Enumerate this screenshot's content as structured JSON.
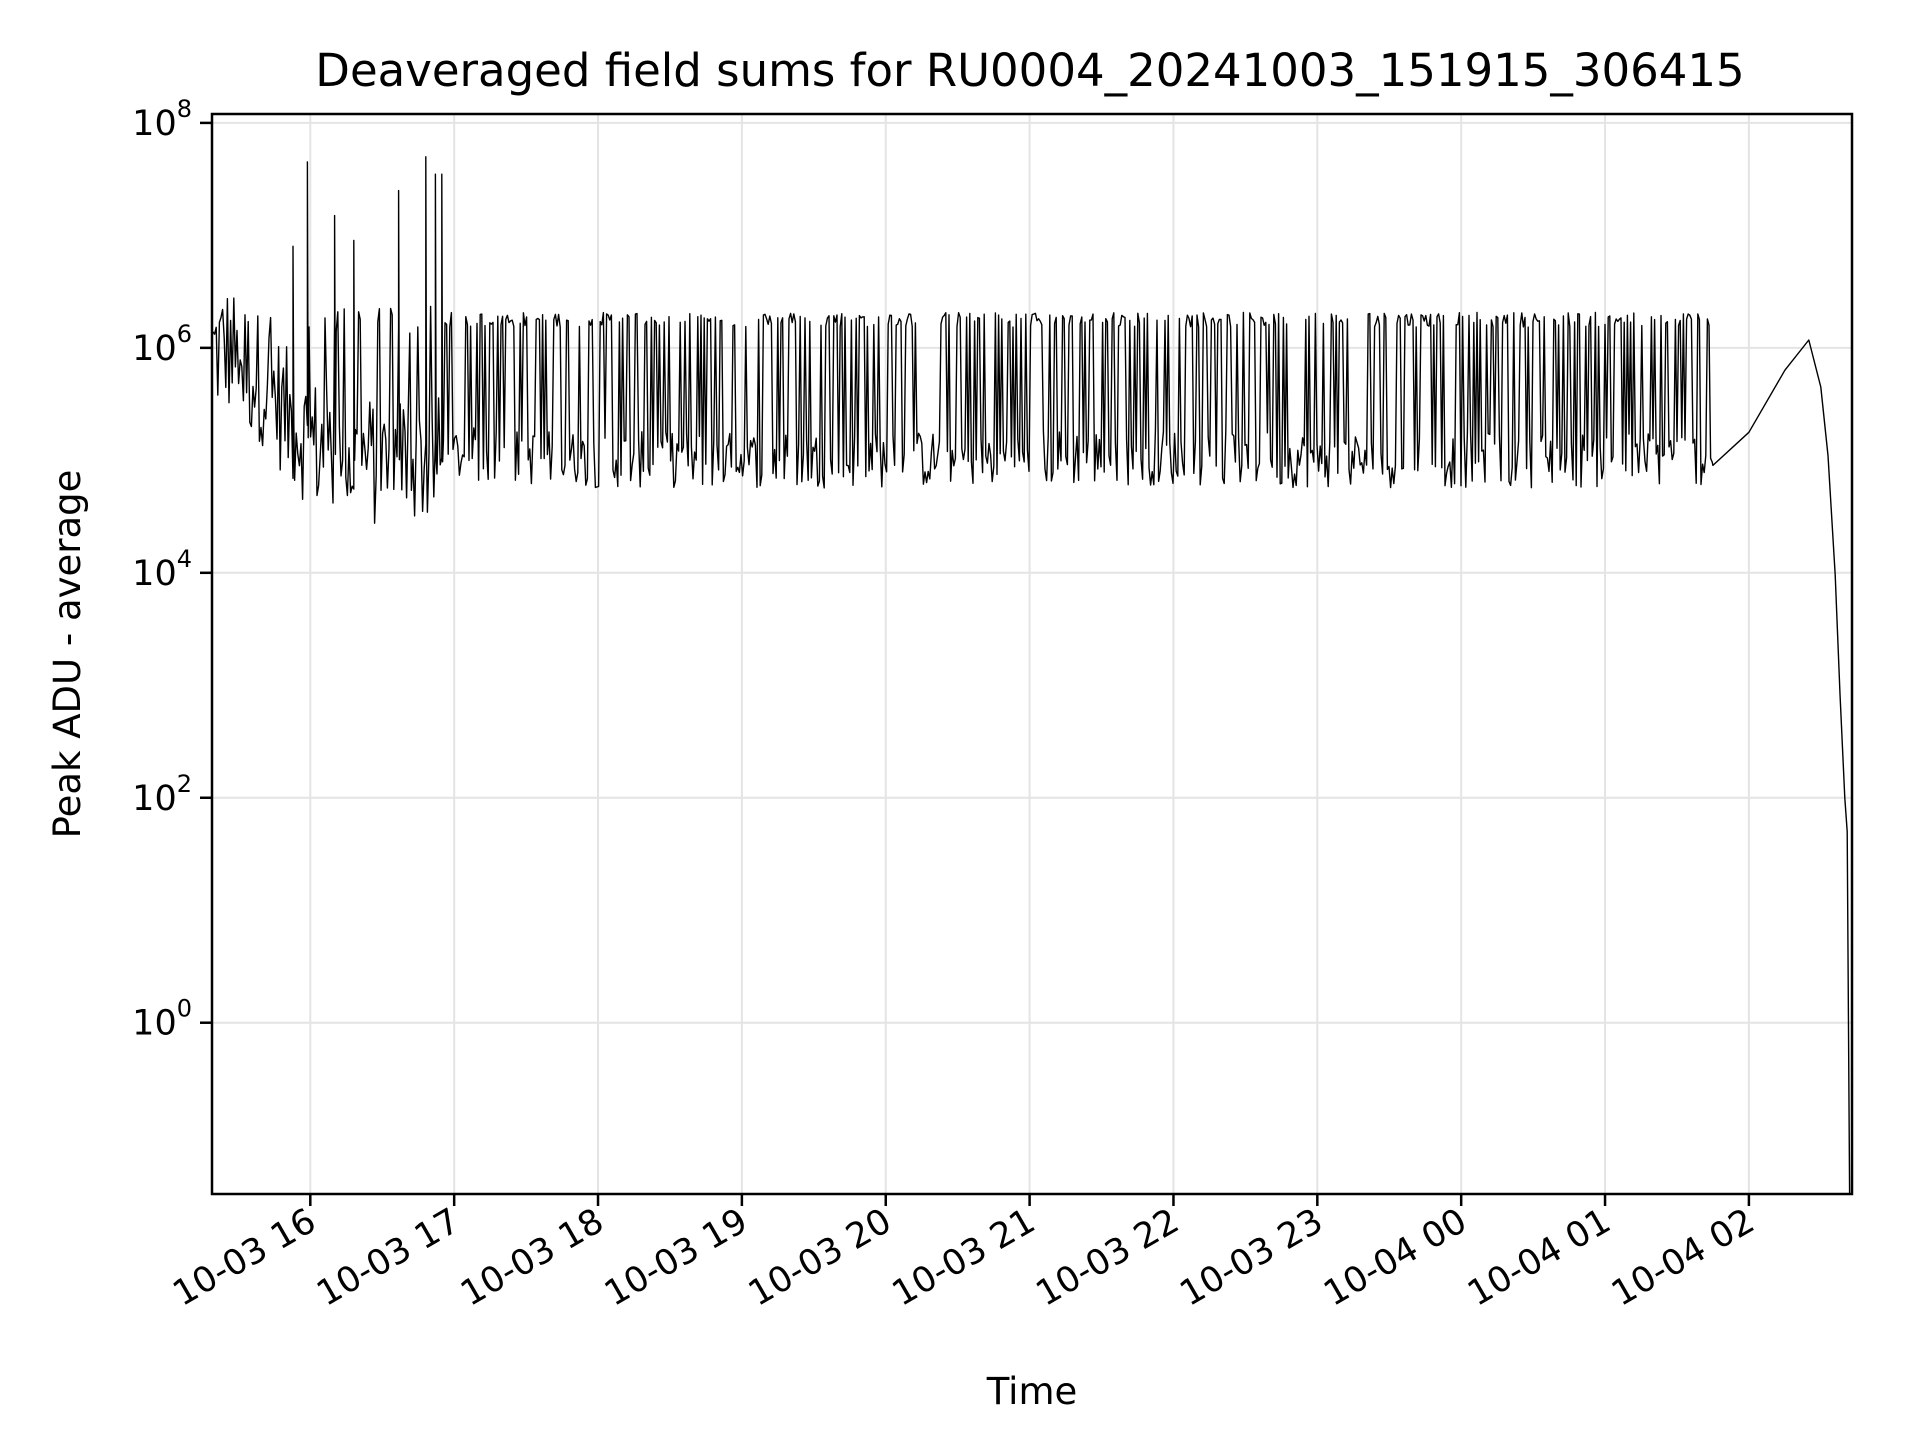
{
  "chart_data": {
    "type": "line",
    "title": "Deaveraged field sums for RU0004_20241003_151915_306415",
    "xlabel": "Time",
    "ylabel": "Peak ADU - average",
    "yscale": "log",
    "ylim": [
      0.03,
      120000000
    ],
    "xlim": [
      "2024-10-03 15:19",
      "2024-10-04 02:43"
    ],
    "grid": true,
    "x_tick_labels": [
      "10-03 16",
      "10-03 17",
      "10-03 18",
      "10-03 19",
      "10-03 20",
      "10-03 21",
      "10-03 22",
      "10-03 23",
      "10-04 00",
      "10-04 01",
      "10-04 02"
    ],
    "x_tick_values": [
      "2024-10-03 16:00",
      "2024-10-03 17:00",
      "2024-10-03 18:00",
      "2024-10-03 19:00",
      "2024-10-03 20:00",
      "2024-10-03 21:00",
      "2024-10-03 22:00",
      "2024-10-03 23:00",
      "2024-10-04 00:00",
      "2024-10-04 01:00",
      "2024-10-04 02:00"
    ],
    "y_ticks": [
      {
        "value": 1,
        "base": "10",
        "exp": "0"
      },
      {
        "value": 100,
        "base": "10",
        "exp": "2"
      },
      {
        "value": 10000,
        "base": "10",
        "exp": "4"
      },
      {
        "value": 1000000,
        "base": "10",
        "exp": "6"
      },
      {
        "value": 100000000,
        "base": "10",
        "exp": "8"
      }
    ],
    "series": [
      {
        "color": "#000000",
        "x": [
          "2024-10-03 15:19",
          "2024-10-03 15:25",
          "2024-10-03 15:30",
          "2024-10-03 15:36",
          "2024-10-03 15:42",
          "2024-10-03 15:48",
          "2024-10-03 15:54",
          "2024-10-03 16:00",
          "2024-10-03 16:06",
          "2024-10-03 16:12",
          "2024-10-03 16:18",
          "2024-10-03 16:24",
          "2024-10-03 16:30",
          "2024-10-03 16:36",
          "2024-10-03 16:42",
          "2024-10-03 16:48",
          "2024-10-03 17:00",
          "2024-10-03 17:30",
          "2024-10-03 18:00",
          "2024-10-03 19:00",
          "2024-10-03 20:00",
          "2024-10-03 21:00",
          "2024-10-03 22:00",
          "2024-10-03 23:00",
          "2024-10-04 00:00",
          "2024-10-04 01:00",
          "2024-10-04 01:45",
          "2024-10-04 02:00",
          "2024-10-04 02:15",
          "2024-10-04 02:25",
          "2024-10-04 02:30",
          "2024-10-04 02:33",
          "2024-10-04 02:36",
          "2024-10-04 02:38",
          "2024-10-04 02:40",
          "2024-10-04 02:41",
          "2024-10-04 02:42"
        ],
        "y": [
          900000,
          1000000,
          800000,
          600000,
          500000,
          300000,
          200000,
          150000,
          120000,
          110000,
          100000,
          100000,
          95000,
          100000,
          110000,
          100000,
          95000,
          90000,
          85000,
          85000,
          85000,
          90000,
          90000,
          85000,
          85000,
          85000,
          90000,
          200000,
          500000,
          1000000,
          600000,
          100000,
          10000,
          1000,
          100,
          50,
          0.03
        ]
      }
    ],
    "spikes": {
      "x": [
        "2024-10-03 15:53",
        "2024-10-03 15:59",
        "2024-10-03 16:10",
        "2024-10-03 16:18",
        "2024-10-03 16:37",
        "2024-10-03 16:48",
        "2024-10-03 16:52",
        "2024-10-03 16:55"
      ],
      "y": [
        8000000,
        45000000,
        15000000,
        9000000,
        25000000,
        50000000,
        35000000,
        35000000
      ]
    },
    "band": {
      "low": 70000,
      "high": 1800000
    }
  }
}
